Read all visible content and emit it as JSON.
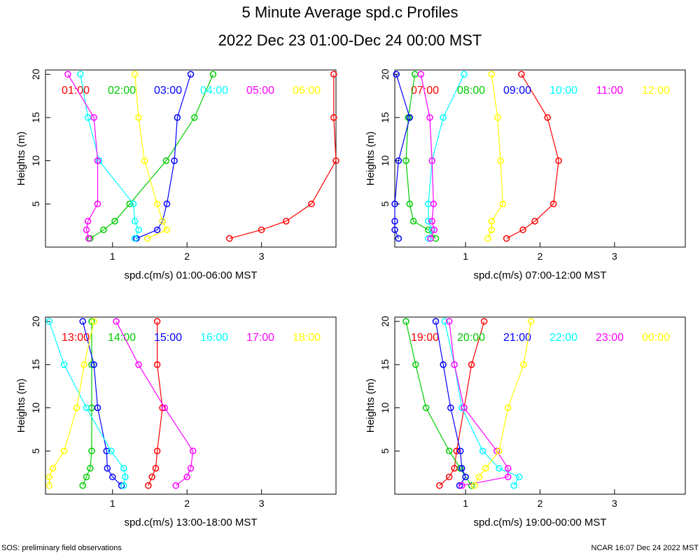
{
  "title": "5 Minute Average spd.c Profiles",
  "subtitle": "2022 Dec 23 01:00-Dec 24 00:00 MST",
  "footer_left": "SOS: preliminary field observations",
  "footer_right": "NCAR 16:07 Dec 24 2022 MST",
  "chart_data": [
    {
      "type": "line",
      "ylabel": "Heights (m)",
      "xlabel": "spd.c(m/s) 01:00-06:00 MST",
      "xlim": [
        0.1,
        4.0
      ],
      "ylim": [
        0,
        20.5
      ],
      "xticks": [
        1,
        2,
        3
      ],
      "yticks": [
        5,
        10,
        15,
        20
      ],
      "heights": [
        1,
        2,
        3,
        5,
        10,
        15,
        20
      ],
      "series": [
        {
          "name": "01:00",
          "color": "#ff0000",
          "values": [
            2.57,
            3.0,
            3.33,
            3.67,
            4.0,
            3.97,
            3.97
          ]
        },
        {
          "name": "02:00",
          "color": "#00cc00",
          "values": [
            0.7,
            0.88,
            1.03,
            1.23,
            1.72,
            2.1,
            2.35
          ]
        },
        {
          "name": "03:00",
          "color": "#0000ff",
          "values": [
            1.32,
            1.6,
            1.67,
            1.73,
            1.83,
            1.87,
            2.05
          ]
        },
        {
          "name": "04:00",
          "color": "#00ffff",
          "values": [
            1.3,
            1.35,
            1.3,
            1.28,
            0.82,
            0.67,
            0.57
          ]
        },
        {
          "name": "05:00",
          "color": "#ff00ff",
          "values": [
            0.68,
            0.65,
            0.67,
            0.8,
            0.8,
            0.75,
            0.4
          ]
        },
        {
          "name": "06:00",
          "color": "#ffff00",
          "values": [
            1.47,
            1.73,
            1.67,
            1.6,
            1.43,
            1.35,
            1.3
          ]
        }
      ]
    },
    {
      "type": "line",
      "ylabel": "Heights (m)",
      "xlabel": "spd.c(m/s) 07:00-12:00 MST",
      "xlim": [
        0.05,
        3.95
      ],
      "ylim": [
        0,
        20.5
      ],
      "xticks": [
        1,
        2,
        3
      ],
      "yticks": [
        5,
        10,
        15,
        20
      ],
      "heights": [
        1,
        2,
        3,
        5,
        10,
        15,
        20
      ],
      "series": [
        {
          "name": "07:00",
          "color": "#ff0000",
          "values": [
            1.55,
            1.77,
            1.93,
            2.18,
            2.25,
            2.1,
            1.75
          ]
        },
        {
          "name": "08:00",
          "color": "#00cc00",
          "values": [
            0.6,
            0.5,
            0.3,
            0.25,
            0.2,
            0.23,
            0.32
          ]
        },
        {
          "name": "09:00",
          "color": "#0000ff",
          "values": [
            0.1,
            0.05,
            0.05,
            0.05,
            0.1,
            0.25,
            0.07
          ]
        },
        {
          "name": "10:00",
          "color": "#00ffff",
          "values": [
            0.5,
            0.55,
            0.5,
            0.5,
            0.55,
            0.7,
            0.98
          ]
        },
        {
          "name": "11:00",
          "color": "#ff00ff",
          "values": [
            0.53,
            0.58,
            0.55,
            0.57,
            0.55,
            0.52,
            0.4
          ]
        },
        {
          "name": "12:00",
          "color": "#ffff00",
          "values": [
            1.3,
            1.35,
            1.35,
            1.5,
            1.47,
            1.43,
            1.35
          ]
        }
      ]
    },
    {
      "type": "line",
      "ylabel": "Heights (m)",
      "xlabel": "spd.c(m/s) 13:00-18:00 MST",
      "xlim": [
        0.1,
        4.0
      ],
      "ylim": [
        0,
        20.5
      ],
      "xticks": [
        1,
        2,
        3
      ],
      "yticks": [
        5,
        10,
        15,
        20
      ],
      "heights": [
        1,
        2,
        3,
        5,
        10,
        15,
        20
      ],
      "series": [
        {
          "name": "13:00",
          "color": "#ff0000",
          "values": [
            1.48,
            1.53,
            1.58,
            1.6,
            1.67,
            1.6,
            1.6
          ]
        },
        {
          "name": "14:00",
          "color": "#00cc00",
          "values": [
            0.6,
            0.65,
            0.7,
            0.72,
            0.72,
            0.72,
            0.72
          ]
        },
        {
          "name": "15:00",
          "color": "#0000ff",
          "values": [
            1.12,
            1.0,
            0.93,
            0.92,
            0.8,
            0.75,
            0.6
          ]
        },
        {
          "name": "16:00",
          "color": "#00ffff",
          "values": [
            1.15,
            1.17,
            1.15,
            0.98,
            0.65,
            0.35,
            0.15
          ]
        },
        {
          "name": "17:00",
          "color": "#ff00ff",
          "values": [
            1.85,
            2.0,
            2.05,
            2.08,
            1.7,
            1.35,
            1.05
          ]
        },
        {
          "name": "18:00",
          "color": "#ffff00",
          "values": [
            0.15,
            0.15,
            0.2,
            0.35,
            0.52,
            0.62,
            0.75
          ]
        }
      ]
    },
    {
      "type": "line",
      "ylabel": "Heights (m)",
      "xlabel": "spd.c(m/s) 19:00-00:00 MST",
      "xlim": [
        0.05,
        3.95
      ],
      "ylim": [
        0,
        20.5
      ],
      "xticks": [
        1,
        2,
        3
      ],
      "yticks": [
        5,
        10,
        15,
        20
      ],
      "heights": [
        1,
        2,
        3,
        5,
        10,
        15,
        20
      ],
      "series": [
        {
          "name": "19:00",
          "color": "#ff0000",
          "values": [
            0.65,
            0.78,
            0.85,
            0.88,
            0.98,
            1.08,
            1.25
          ]
        },
        {
          "name": "20:00",
          "color": "#00cc00",
          "values": [
            1.08,
            1.0,
            0.93,
            0.78,
            0.47,
            0.33,
            0.2
          ]
        },
        {
          "name": "21:00",
          "color": "#0000ff",
          "values": [
            0.92,
            1.0,
            0.95,
            0.93,
            0.8,
            0.7,
            0.6
          ]
        },
        {
          "name": "22:00",
          "color": "#00ffff",
          "values": [
            1.65,
            1.72,
            1.45,
            1.23,
            0.95,
            0.85,
            0.72
          ]
        },
        {
          "name": "23:00",
          "color": "#ff00ff",
          "values": [
            0.95,
            1.57,
            1.57,
            1.42,
            0.98,
            0.85,
            0.78
          ]
        },
        {
          "name": "00:00",
          "color": "#ffff00",
          "values": [
            1.12,
            1.18,
            1.27,
            1.45,
            1.57,
            1.78,
            1.88
          ]
        }
      ]
    }
  ]
}
